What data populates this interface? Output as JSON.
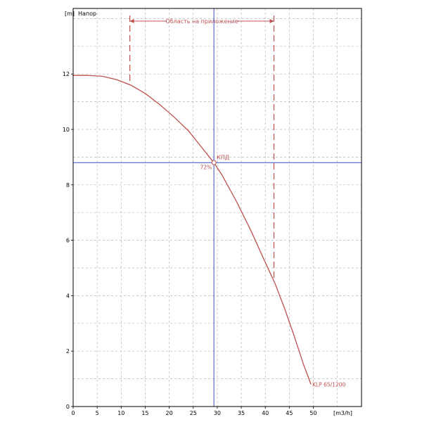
{
  "chart_data": {
    "type": "line",
    "title": "Напор",
    "ylabel": "[m]",
    "xlabel": "[m3/h]",
    "xlim": [
      0,
      60
    ],
    "ylim": [
      0,
      14
    ],
    "x_ticks": [
      0,
      5,
      10,
      15,
      20,
      25,
      30,
      35,
      40,
      45,
      50
    ],
    "y_ticks": [
      0,
      2,
      4,
      6,
      8,
      10,
      12
    ],
    "grid": true,
    "series": [
      {
        "name": "KLP 65/1200",
        "color": "#c0504d",
        "x": [
          0,
          3,
          6,
          9,
          12,
          15,
          18,
          21,
          24,
          27,
          29.3,
          31,
          34,
          37,
          40,
          42,
          44,
          46,
          48,
          49.5
        ],
        "y": [
          11.95,
          11.95,
          11.92,
          11.8,
          11.6,
          11.3,
          10.9,
          10.45,
          9.95,
          9.3,
          8.8,
          8.35,
          7.4,
          6.35,
          5.2,
          4.45,
          3.55,
          2.55,
          1.5,
          0.8
        ]
      }
    ],
    "operating_point": {
      "x": 29.3,
      "y": 8.8,
      "label": "КПД",
      "efficiency_label": "72%",
      "line_color": "#3a4fc0"
    },
    "application_range": {
      "label": "Область на приложение",
      "x_start": 11.8,
      "x_end": 41.8,
      "color": "#c0504d"
    }
  }
}
